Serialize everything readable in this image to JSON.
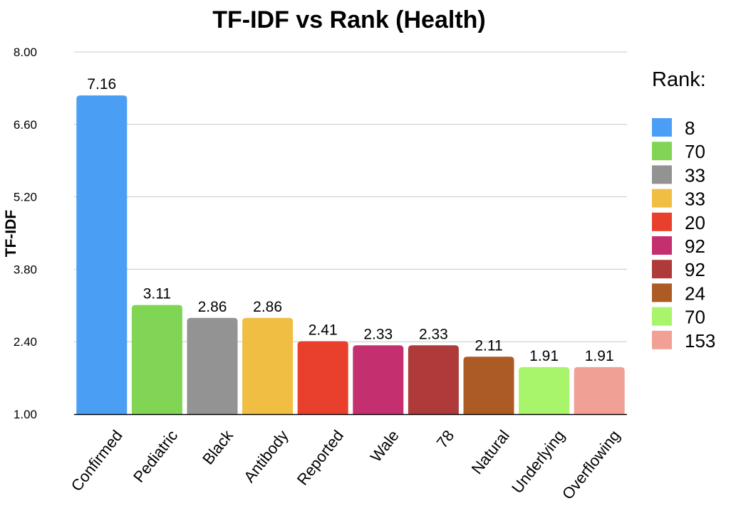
{
  "chart_data": {
    "type": "bar",
    "title": "TF-IDF vs Rank (Health)",
    "xlabel": "",
    "ylabel": "TF-IDF",
    "ylim": [
      1.0,
      8.0
    ],
    "yticks": [
      "1.00",
      "2.40",
      "3.80",
      "5.20",
      "6.60",
      "8.00"
    ],
    "categories": [
      "Confirmed",
      "Pediatric",
      "Black",
      "Antibody",
      "Reported",
      "Wale",
      "78",
      "Natural",
      "Underlying",
      "Overflowing"
    ],
    "values": [
      7.16,
      3.11,
      2.86,
      2.86,
      2.41,
      2.33,
      2.33,
      2.11,
      1.91,
      1.91
    ],
    "value_labels": [
      "7.16",
      "3.11",
      "2.86",
      "2.86",
      "2.41",
      "2.33",
      "2.33",
      "2.11",
      "1.91",
      "1.91"
    ],
    "colors": [
      "#4A9FF5",
      "#80D654",
      "#939393",
      "#F0BE42",
      "#E8402C",
      "#C4306F",
      "#AE3A3A",
      "#AC5B24",
      "#A8F46A",
      "#F1A096"
    ],
    "grid": true,
    "legend": {
      "title": "Rank:",
      "position": "right",
      "entries": [
        "8",
        "70",
        "33",
        "33",
        "20",
        "92",
        "92",
        "24",
        "70",
        "153"
      ]
    }
  }
}
